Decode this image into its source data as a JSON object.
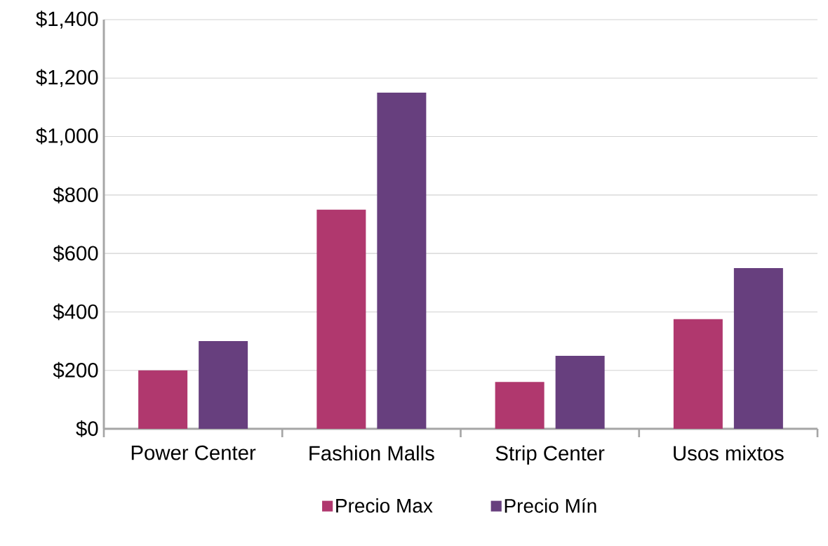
{
  "chart_data": {
    "type": "bar",
    "categories": [
      "Power Center",
      "Fashion Malls",
      "Strip Center",
      "Usos mixtos"
    ],
    "series": [
      {
        "name": "Precio Max",
        "color": "#b0386e",
        "values": [
          200,
          750,
          160,
          375
        ]
      },
      {
        "name": "Precio Mín",
        "color": "#673f7e",
        "values": [
          300,
          1150,
          250,
          550
        ]
      }
    ],
    "ylim": [
      0,
      1400
    ],
    "yticks": [
      {
        "value": 0,
        "label": "$0"
      },
      {
        "value": 200,
        "label": "$200"
      },
      {
        "value": 400,
        "label": "$400"
      },
      {
        "value": 600,
        "label": "$600"
      },
      {
        "value": 800,
        "label": "$800"
      },
      {
        "value": 1000,
        "label": "$1,000"
      },
      {
        "value": 1200,
        "label": "$1,200"
      },
      {
        "value": 1400,
        "label": "$1,400"
      }
    ],
    "grid": "y",
    "legend": "bottom"
  }
}
